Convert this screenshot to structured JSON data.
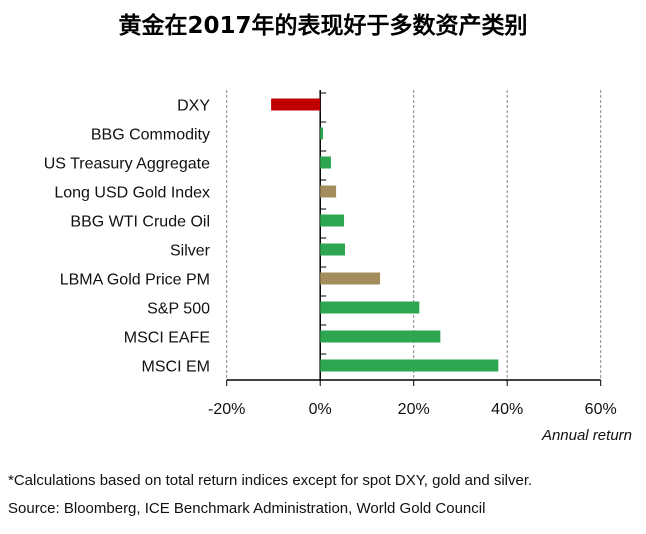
{
  "chart_data": {
    "type": "bar",
    "orientation": "horizontal",
    "title": "黄金在2017年的表现好于多数资产类别",
    "xlabel": "Annual return",
    "ylabel": "",
    "xlim": [
      -20,
      60
    ],
    "x_ticks": [
      -20,
      0,
      20,
      40,
      60
    ],
    "x_tick_labels": [
      "-20%",
      "0%",
      "20%",
      "40%",
      "60%"
    ],
    "grid": "vertical dashed",
    "categories": [
      "DXY",
      "BBG Commodity",
      "US Treasury Aggregate",
      "Long USD Gold Index",
      "BBG WTI Crude Oil",
      "Silver",
      "LBMA Gold Price PM",
      "S&P 500",
      "MSCI EAFE",
      "MSCI EM"
    ],
    "values": [
      -10.5,
      0.6,
      2.3,
      3.4,
      5.1,
      5.3,
      12.8,
      21.2,
      25.7,
      38.1
    ],
    "colors": [
      "#c00000",
      "#2ea651",
      "#2ea651",
      "#a38d5d",
      "#2ea651",
      "#2ea651",
      "#a38d5d",
      "#2ea651",
      "#2ea651",
      "#2ea651"
    ]
  },
  "footnotes": [
    "*Calculations based on total return indices except for spot DXY, gold and silver.",
    "Source: Bloomberg, ICE Benchmark Administration, World Gold Council"
  ]
}
